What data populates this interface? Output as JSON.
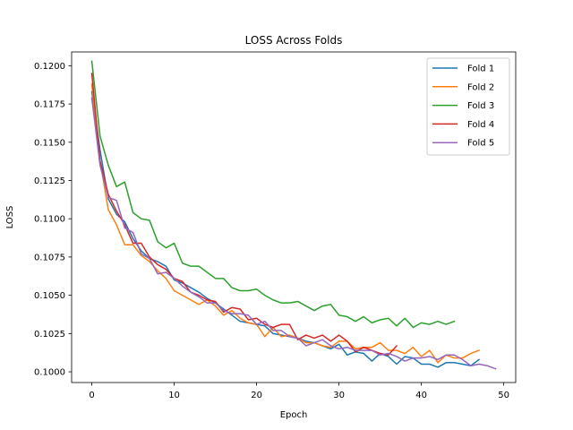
{
  "chart_data": {
    "type": "line",
    "title": "LOSS Across Folds",
    "xlabel": "Epoch",
    "ylabel": "LOSS",
    "xlim": [
      -2.45,
      51.45
    ],
    "ylim": [
      0.0993,
      0.1209
    ],
    "xticks": [
      0,
      10,
      20,
      30,
      40,
      50
    ],
    "yticks": [
      0.1,
      0.1025,
      0.105,
      0.1075,
      0.11,
      0.1125,
      0.115,
      0.1175,
      0.12
    ],
    "xtick_labels": [
      "0",
      "10",
      "20",
      "30",
      "40",
      "50"
    ],
    "ytick_labels": [
      "0.1000",
      "0.1025",
      "0.1050",
      "0.1075",
      "0.1100",
      "0.1125",
      "0.1150",
      "0.1175",
      "0.1200"
    ],
    "grid": false,
    "legend_position": "top-right",
    "series": [
      {
        "name": "Fold 1",
        "color": "#1f77b4",
        "values": [
          0.1183,
          0.1145,
          0.1113,
          0.1103,
          0.1098,
          0.1087,
          0.1079,
          0.1074,
          0.1072,
          0.1069,
          0.106,
          0.1058,
          0.1055,
          0.1052,
          0.1048,
          0.1045,
          0.1041,
          0.1037,
          0.1033,
          0.1032,
          0.1031,
          0.103,
          0.1025,
          0.1024,
          0.1023,
          0.1022,
          0.102,
          0.1019,
          0.1017,
          0.1015,
          0.1018,
          0.1011,
          0.1013,
          0.1012,
          0.1007,
          0.1012,
          0.101,
          0.1005,
          0.101,
          0.1009,
          0.1005,
          0.1005,
          0.1003,
          0.1006,
          0.1006,
          0.1005,
          0.1004,
          0.1008
        ]
      },
      {
        "name": "Fold 2",
        "color": "#ff7f0e",
        "values": [
          0.1188,
          0.1138,
          0.1106,
          0.1096,
          0.1083,
          0.1083,
          0.1076,
          0.1072,
          0.1066,
          0.1061,
          0.1053,
          0.105,
          0.1047,
          0.1044,
          0.1047,
          0.1043,
          0.1037,
          0.104,
          0.1035,
          0.1032,
          0.1031,
          0.1023,
          0.1029,
          0.1023,
          0.1024,
          0.1022,
          0.1019,
          0.1019,
          0.1017,
          0.1016,
          0.102,
          0.102,
          0.1015,
          0.1016,
          0.1016,
          0.1019,
          0.1014,
          0.1014,
          0.1012,
          0.1016,
          0.101,
          0.1014,
          0.1006,
          0.1011,
          0.1009,
          0.1009,
          0.1012,
          0.1014
        ]
      },
      {
        "name": "Fold 3",
        "color": "#2ca02c",
        "values": [
          0.1203,
          0.1154,
          0.1135,
          0.1121,
          0.1124,
          0.1104,
          0.11,
          0.1099,
          0.1085,
          0.1081,
          0.1084,
          0.1071,
          0.1069,
          0.1069,
          0.1065,
          0.1061,
          0.1061,
          0.1055,
          0.1053,
          0.1053,
          0.1054,
          0.105,
          0.1047,
          0.1045,
          0.1045,
          0.1046,
          0.1043,
          0.104,
          0.1043,
          0.1044,
          0.1037,
          0.1036,
          0.1033,
          0.1036,
          0.1032,
          0.1034,
          0.1035,
          0.103,
          0.1035,
          0.1029,
          0.1032,
          0.1031,
          0.1033,
          0.1031,
          0.1033
        ]
      },
      {
        "name": "Fold 4",
        "color": "#d62728",
        "values": [
          0.1195,
          0.1138,
          0.1116,
          0.1105,
          0.1096,
          0.1084,
          0.1084,
          0.1075,
          0.107,
          0.1067,
          0.1061,
          0.1059,
          0.1052,
          0.105,
          0.1047,
          0.1046,
          0.1039,
          0.1042,
          0.1041,
          0.1034,
          0.1035,
          0.1031,
          0.1029,
          0.1031,
          0.1031,
          0.1021,
          0.1024,
          0.1022,
          0.1024,
          0.102,
          0.1024,
          0.102,
          0.1013,
          0.1016,
          0.1014,
          0.1012,
          0.1011,
          0.1017
        ]
      },
      {
        "name": "Fold 5",
        "color": "#9467bd",
        "values": [
          0.1179,
          0.1135,
          0.1114,
          0.1112,
          0.1094,
          0.1091,
          0.1077,
          0.1074,
          0.1064,
          0.1065,
          0.1061,
          0.1056,
          0.1052,
          0.1049,
          0.1045,
          0.1045,
          0.104,
          0.1038,
          0.1038,
          0.1037,
          0.1031,
          0.1033,
          0.1027,
          0.1027,
          0.1023,
          0.1022,
          0.1017,
          0.1019,
          0.1021,
          0.1017,
          0.1015,
          0.1016,
          0.1014,
          0.1014,
          0.1014,
          0.1011,
          0.1012,
          0.101,
          0.1007,
          0.1009,
          0.1009,
          0.101,
          0.1008,
          0.1011,
          0.1011,
          0.1008,
          0.1004,
          0.1005,
          0.1004,
          0.1002
        ]
      }
    ]
  }
}
